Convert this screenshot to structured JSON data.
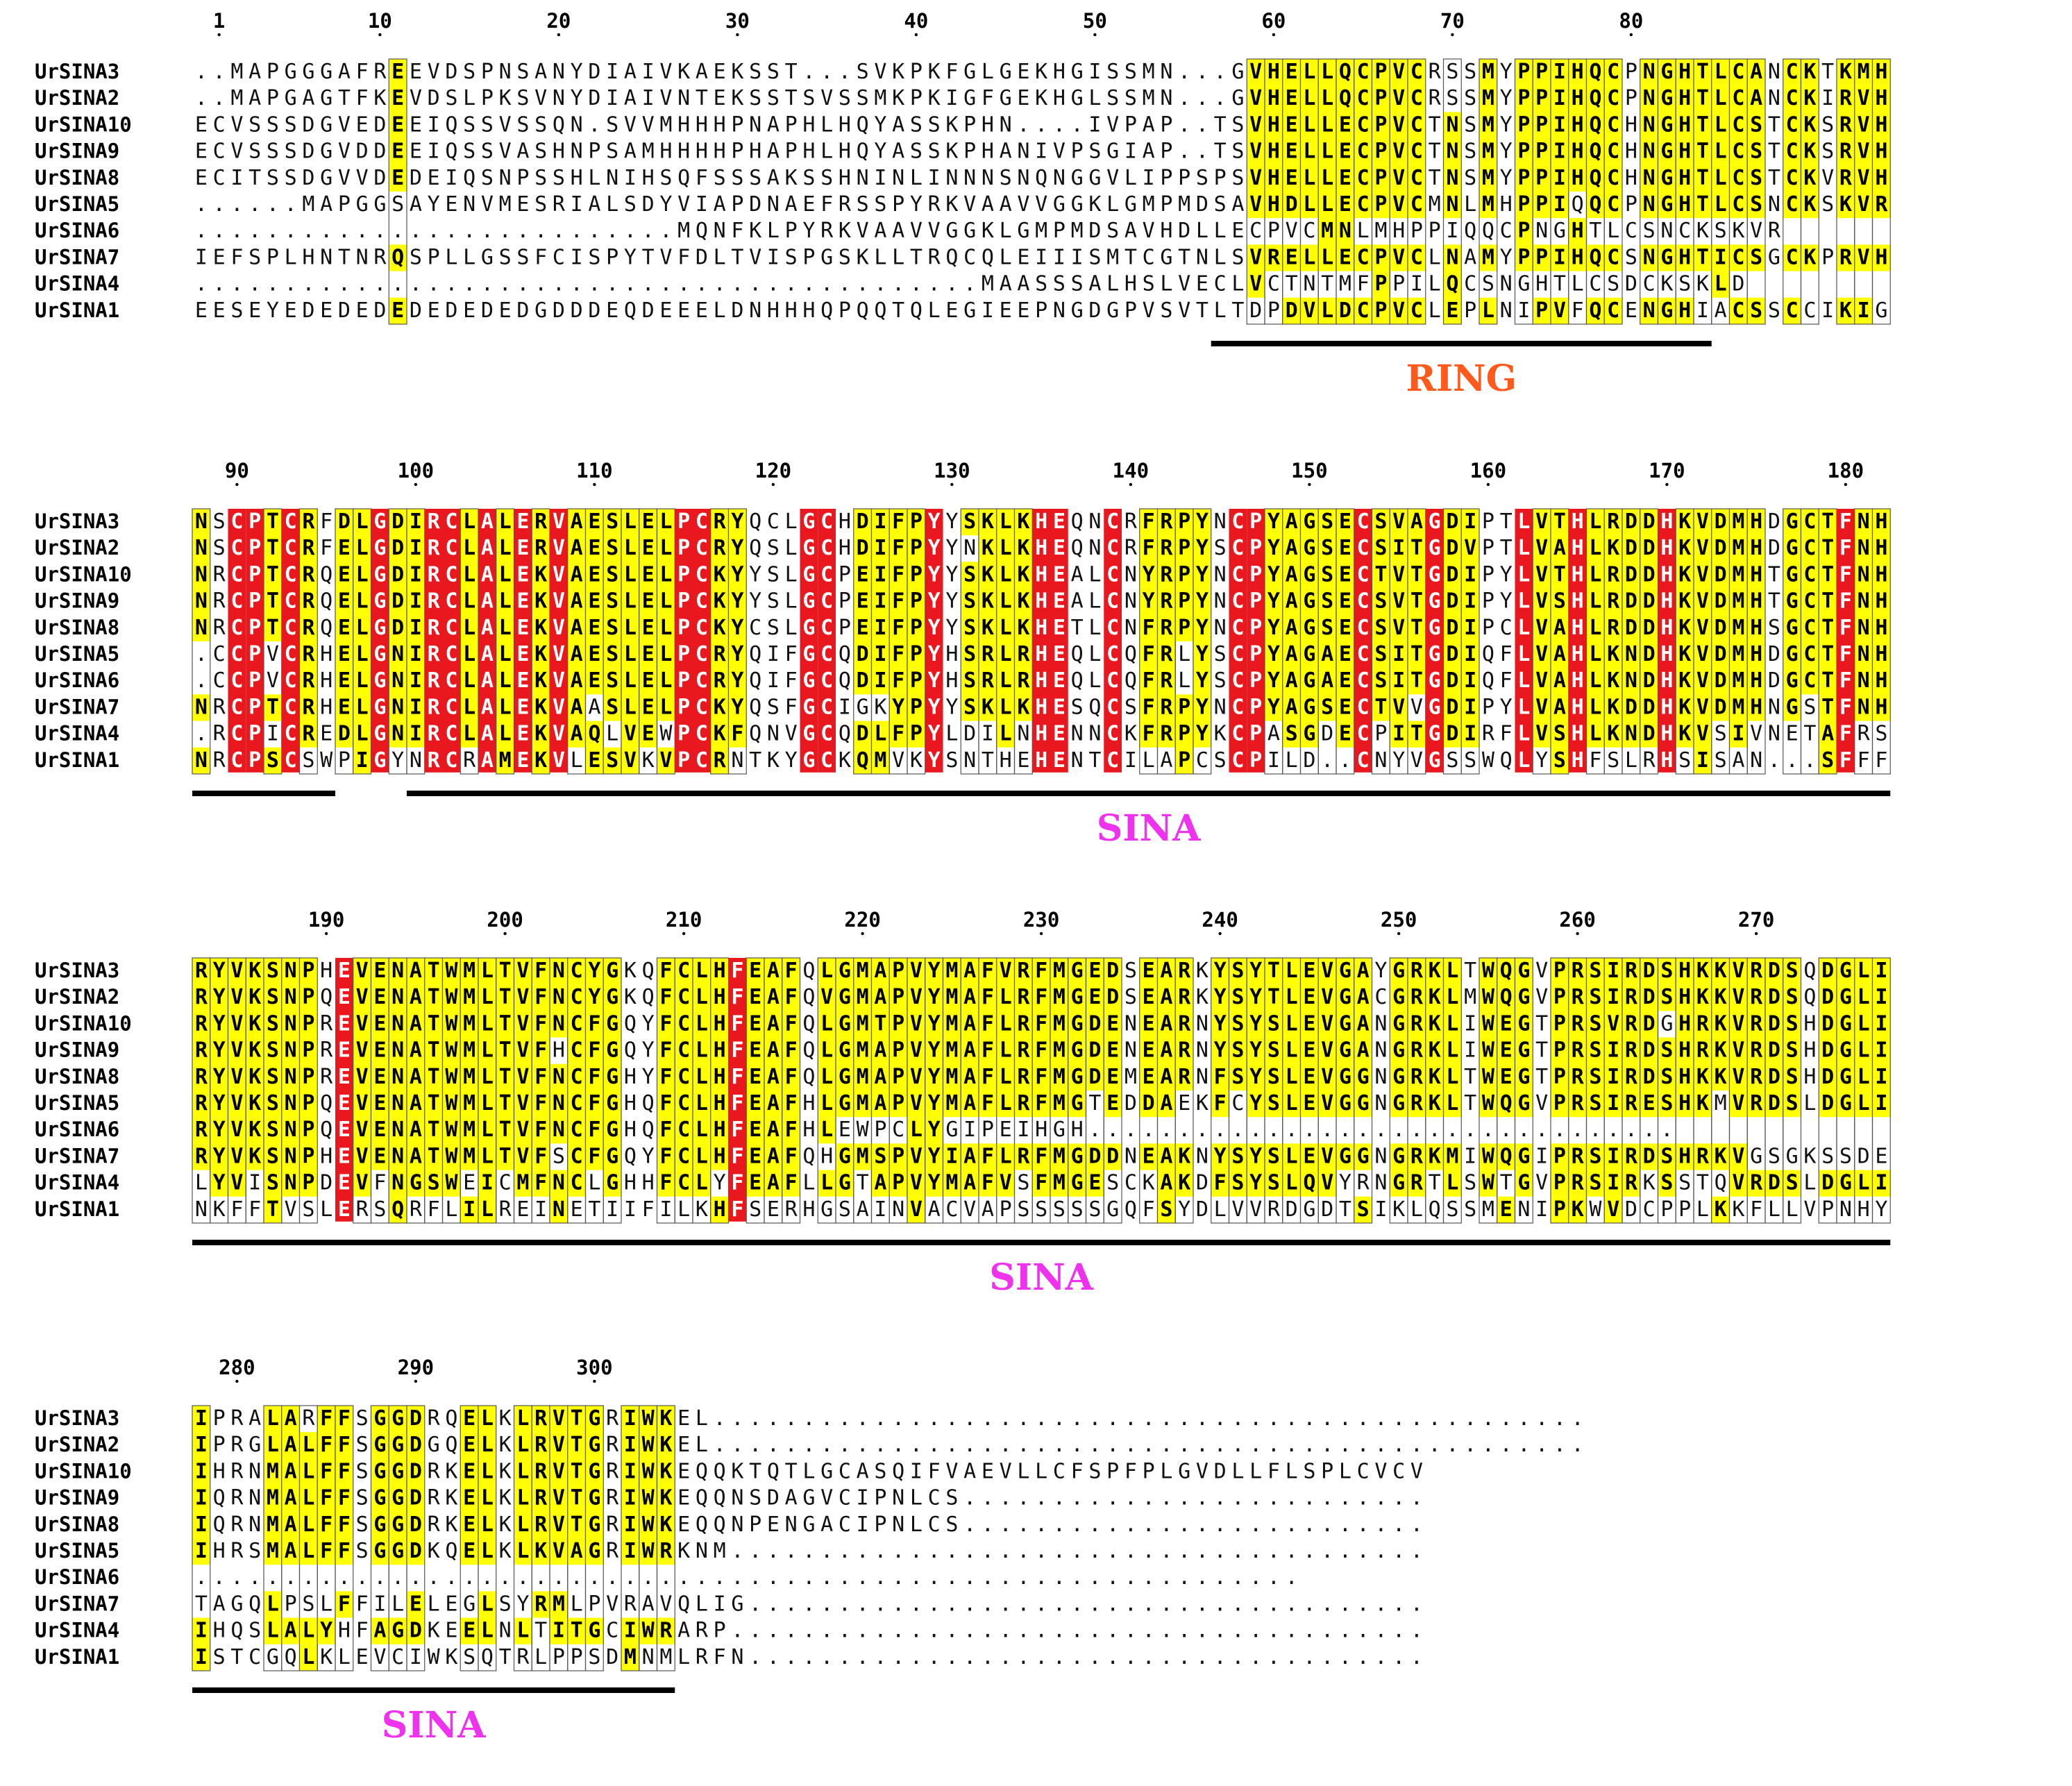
{
  "figure": {
    "sequence_names": [
      "UrSINA3",
      "UrSINA2",
      "UrSINA10",
      "UrSINA9",
      "UrSINA8",
      "UrSINA5",
      "UrSINA6",
      "UrSINA7",
      "UrSINA4",
      "UrSINA1"
    ],
    "colors": {
      "identical_background": "#e8181e",
      "similar_background": "#ffff00",
      "identical_text": "#ffffff",
      "text": "#000000",
      "box_border": "#555555",
      "domain_bar": "#000000",
      "ring_label_color": "#ff5a1c",
      "sina_label_color": "#ee32ee"
    },
    "blocks": [
      {
        "ruler": [
          {
            "pos": 1,
            "label": "1"
          },
          {
            "pos": 10,
            "label": "10"
          },
          {
            "pos": 20,
            "label": "20"
          },
          {
            "pos": 30,
            "label": "30"
          },
          {
            "pos": 40,
            "label": "40"
          },
          {
            "pos": 50,
            "label": "50"
          },
          {
            "pos": 60,
            "label": "60"
          },
          {
            "pos": 70,
            "label": "70"
          },
          {
            "pos": 80,
            "label": "80"
          }
        ],
        "start": -1,
        "sequences": [
          "..MAPGGGAFREEVDSPNSANYDIAIVKAEKSST...SVKPKFGLGEKHGISSMN...GVHELLQCPVCRSSMYPPIHQCPNGHTLCANCKTKMH",
          "..MAPGAGTFKEVDSLPKSVNYDIAIVNTEKSSTSVSSMKPKIGFGEKHGLSSMN...GVHELLQCPVCRSSMYPPIHQCPNGHTLCANCKIRVH",
          "ECVSSSDGVEDEEIQSSVSSQN.SVVMHHHPNAPHLHQYASSKPHN....IVPAP..TSVHELLECPVCTNSMYPPIHQCHNGHTLCSTCKSRVH",
          "ECVSSSDGVDDEEIQSSVASHNPSAMHHHHPHAPHLHQYASSKPHANIVPSGIAP..TSVHELLECPVCTNSMYPPIHQCHNGHTLCSTCKSRVH",
          "ECITSSDGVVDEDEIQSNPSSHLNIHSQFSSSAKSSHNINLINNNSNQNGGVLIPPSPSVHELLECPVCTNSMYPPIHQCHNGHTLCSTCKVRVH",
          "......MAPGGSAYENVMESRIALSDYVIAPDNAEFRSSPYRKVAAVVGGKLGMPMDSAVHDLLECPVCMNLMHPPIQQCPNGHTLCSNCKSKVR",
          "...........................MQNFKLPYRKVAAVVGGKLGMPMDSAVHDLLECPVCMNLMHPPIQQCPNGHTLCSNCKSKVR",
          "IEFSPLHNTNRQSPLLGSSFCISPYTVFDLTVISPGSKLLTRQCQLEIIISMTCGTNLSVRELLECPVCLNAMYPPIHQCSNGHTICSGCKPRVH",
          "............................................MAASSSALHSLVECLVCTNTMFPPILQCSNGHTLCSDCKSKLD",
          "EESEYEDEDEDEDEDEDEDGDDDEQDEEELDNHHHQPQQTQLEGIEEPNGDGPVSVTLTDPDVLDCPVCLEPLNIPVFQCENGHIACSSCCIKIG"
        ],
        "annotations": [
          {
            "col_start": 57,
            "col_end": 84,
            "label": "RING",
            "color_key": "ring_label_color"
          }
        ]
      },
      {
        "ruler": [
          {
            "pos": 90,
            "label": "90"
          },
          {
            "pos": 100,
            "label": "100"
          },
          {
            "pos": 110,
            "label": "110"
          },
          {
            "pos": 120,
            "label": "120"
          },
          {
            "pos": 130,
            "label": "130"
          },
          {
            "pos": 140,
            "label": "140"
          },
          {
            "pos": 150,
            "label": "150"
          },
          {
            "pos": 160,
            "label": "160"
          },
          {
            "pos": 170,
            "label": "170"
          },
          {
            "pos": 180,
            "label": "180"
          }
        ],
        "start": 87,
        "sequences": [
          "NSCPTCRFDLGDIRCLALERVAESLELPCRYQCLGCHDIFPYYSKLKHEQNCRFRPYNCPYAGSECSVAGDIPTLVTHLRDDHKVDMHDGCTFNH",
          "NSCPTCRFELGDIRCLALERVAESLELPCRYQSLGCHDIFPYYNKLKHEQNCRFRPYSCPYAGSECSITGDVPTLVAHLKDDHKVDMHDGCTFNH",
          "NRCPTCRQELGDIRCLALEKVAESLELPCKYYSLGCPEIFPYYSKLKHEALCNYRPYNCPYAGSECTVTGDIPYLVTHLRDDHKVDMHTGCTFNH",
          "NRCPTCRQELGDIRCLALEKVAESLELPCKYYSLGCPEIFPYYSKLKHEALCNYRPYNCPYAGSECSVTGDIPYLVSHLRDDHKVDMHTGCTFNH",
          "NRCPTCRQELGDIRCLALEKVAESLELPCKYCSLGCPEIFPYYSKLKHETLCNFRPYNCPYAGSECSVTGDIPCLVAHLRDDHKVDMHSGCTFNH",
          ".CCPVCRHELGNIRCLALEKVAESLELPCRYQIFGCQDIFPYHSRLRHEQLCQFRLYSCPYAGAECSITGDIQFLVAHLKNDHKVDMHDGCTFNH",
          ".CCPVCRHELGNIRCLALEKVAESLELPCRYQIFGCQDIFPYHSRLRHEQLCQFRLYSCPYAGAECSITGDIQFLVAHLKNDHKVDMHDGCTFNH",
          "NRCPTCRHELGNIRCLALEKVAASLELPCKYQSFGCIGKYPYYSKLKHESQCSFRPYNCPYAGSECTVVGDIPYLVAHLKDDHKVDMHNGSTFNH",
          ".RCPICREDLGNIRCLALEKVAQLVEWPCKFQNVGCQDLFPYLDILNHENNCKFRPYKCPASGDECPITGDIRFLVSHLKNDHKVSIVNETAFRS",
          "NRCPSCSWPIGYNRCRAMEKVLESVKVPCRNTKYGCKQMVKYSNTHEHENTCILAPCSCPILD..CNYVGSSWQLYSHFSLRHSISAN...SFFF"
        ],
        "annotations": [
          {
            "col_start": 0,
            "col_end": 7,
            "label": "",
            "color_key": "sina_label_color"
          },
          {
            "col_start": 12,
            "col_end": 94,
            "label": "SINA",
            "color_key": "sina_label_color"
          }
        ]
      },
      {
        "ruler": [
          {
            "pos": 190,
            "label": "190"
          },
          {
            "pos": 200,
            "label": "200"
          },
          {
            "pos": 210,
            "label": "210"
          },
          {
            "pos": 220,
            "label": "220"
          },
          {
            "pos": 230,
            "label": "230"
          },
          {
            "pos": 240,
            "label": "240"
          },
          {
            "pos": 250,
            "label": "250"
          },
          {
            "pos": 260,
            "label": "260"
          },
          {
            "pos": 270,
            "label": "270"
          }
        ],
        "start": 182,
        "sequences": [
          "RYVKSNPHEVENATWMLTVFNCYGKQFCLHFEAFQLGMAPVYMAFVRFMGEDSEARKYSYTLEVGAYGRKLTWQGVPRSIRDSHKKVRDSQDGLI",
          "RYVKSNPQEVENATWMLTVFNCYGKQFCLHFEAFQVGMAPVYMAFLRFMGEDSEARKYSYTLEVGACGRKLMWQGVPRSIRDSHKKVRDSQDGLI",
          "RYVKSNPREVENATWMLTVFNCFGQYFCLHFEAFQLGMTPVYMAFLRFMGDENEARNYSYSLEVGANGRKLIWEGTPRSVRDGHRKVRDSHDGLI",
          "RYVKSNPREVENATWMLTVFHCFGQYFCLHFEAFQLGMAPVYMAFLRFMGDENEARNYSYSLEVGANGRKLIWEGTPRSIRDSHRKVRDSHDGLI",
          "RYVKSNPREVENATWMLTVFNCFGHYFCLHFEAFQLGMAPVYMAFLRFMGDEMEARNFSYSLEVGGNGRKLTWEGTPRSIRDSHKKVRDSHDGLI",
          "RYVKSNPQEVENATWMLTVFNCFGHQFCLHFEAFHLGMAPVYMAFLRFMGTEDDAEKFCYSLEVGGNGRKLTWQGVPRSIRESHKMVRDSLDGLI",
          "RYVKSNPQEVENATWMLTVFNCFGHQFCLHFEAFHLEWPCLYGIPEIHGH.................................",
          "RYVKSNPHEVENATWMLTVFSCFGQYFCLHFEAFQHGMSPVYIAFLRFMGDDNEAKNYSYSLEVGGNGRKMIWQGIPRSIRDSHRKVGSGKSSDE",
          "LYVISNPDEVFNGSWEICMFNCLGHHFCLYFEAFLLGTAPVYMAFVSFMGESCKAKDFSYSLQVYRNGRTLSWTGVPRSIRKSSTQVRDSLDGLI",
          "NKFFTVSLERSQRFLILREINETIIFILKHFSERHGSAINVACVAPSSSSSGQFSYDLVVRDGDTSIKLQSSMENIPKWVDCPPLKKFLLVPNHY"
        ],
        "annotations": [
          {
            "col_start": 0,
            "col_end": 94,
            "label": "SINA",
            "color_key": "sina_label_color"
          }
        ]
      },
      {
        "ruler": [
          {
            "pos": 280,
            "label": "280"
          },
          {
            "pos": 290,
            "label": "290"
          },
          {
            "pos": 300,
            "label": "300"
          }
        ],
        "start": 277,
        "sequences": [
          "IPRALARFFSGGDRQELKLRVTGRIWKEL.................................................",
          "IPRGLALFFSGGDGQELKLRVTGRIWKEL.................................................",
          "IHRNMALFFSGGDRKELKLRVTGRIWKEQQKTQTLGCASQIFVAEVLLCFSPFPLGVDLLFLSPLCVCV",
          "IQRNMALFFSGGDRKELKLRVTGRIWKEQQNSDAGVCIPNLCS..........................",
          "IQRNMALFFSGGDRKELKLRVTGRIWKEQQNPENGACIPNLCS..........................",
          "IHRSMALFFSGGDKQELKLKVAGRIWRKNM.......................................",
          "..............................................................",
          "TAGQLPSLFFILELEGLSYRMLPVRAVQLIG......................................",
          "IHQSLALYHFAGDKEELNLTITGCIWRARP.......................................",
          "ISTCGQLKLEVCIWKSQTRLPPSDMNMLRFN......................................"
        ],
        "annotations": [
          {
            "col_start": 0,
            "col_end": 26,
            "label": "SINA",
            "color_key": "sina_label_color"
          }
        ]
      }
    ]
  }
}
